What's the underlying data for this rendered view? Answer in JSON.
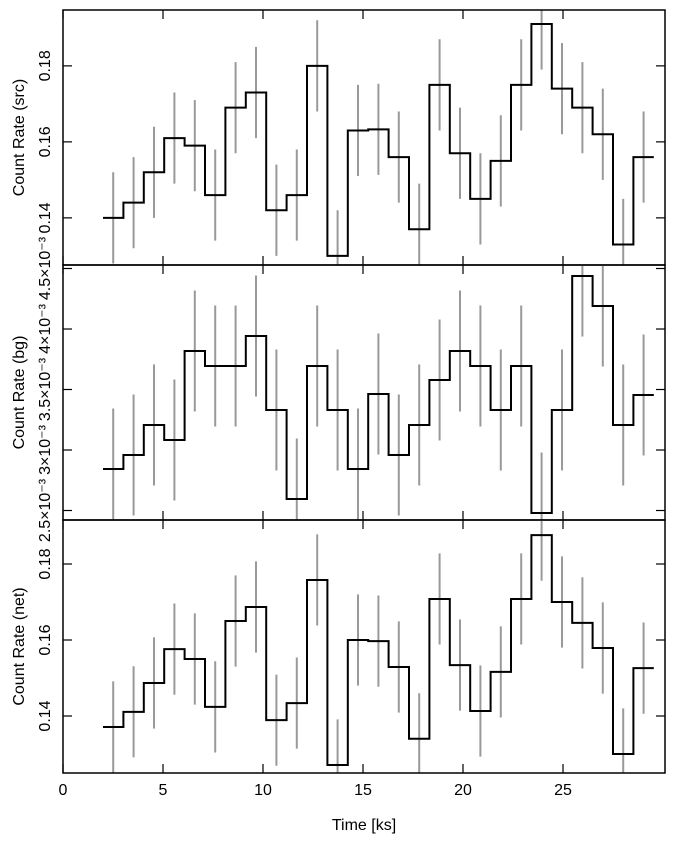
{
  "chart_data": [
    {
      "type": "step",
      "ylabel": "Count Rate (src)",
      "color": "#000000",
      "error_color": "#999999",
      "x": [
        2.51,
        3.53,
        4.55,
        5.57,
        6.59,
        7.61,
        8.63,
        9.65,
        10.67,
        11.69,
        12.71,
        13.73,
        14.75,
        15.77,
        16.79,
        17.81,
        18.83,
        19.85,
        20.87,
        21.89,
        22.91,
        23.93,
        24.95,
        25.97,
        26.99,
        28.01,
        29.03
      ],
      "values": [
        0.14,
        0.144,
        0.152,
        0.161,
        0.159,
        0.146,
        0.169,
        0.173,
        0.142,
        0.146,
        0.18,
        0.13,
        0.163,
        0.1633,
        0.156,
        0.137,
        0.175,
        0.157,
        0.145,
        0.155,
        0.175,
        0.191,
        0.174,
        0.169,
        0.162,
        0.133,
        0.156
      ],
      "errors": [
        0.012,
        0.012,
        0.012,
        0.012,
        0.012,
        0.012,
        0.012,
        0.012,
        0.012,
        0.012,
        0.012,
        0.012,
        0.012,
        0.012,
        0.012,
        0.012,
        0.012,
        0.012,
        0.012,
        0.012,
        0.012,
        0.012,
        0.012,
        0.012,
        0.012,
        0.012,
        0.012
      ],
      "xlim": [
        0,
        30.1
      ],
      "xticks": [
        0,
        5,
        10,
        15,
        20,
        25
      ],
      "ylim": [
        0.1276,
        0.1947
      ],
      "yticks": [
        0.14,
        0.16,
        0.18
      ]
    },
    {
      "type": "step",
      "ylabel": "Count Rate (bg)",
      "color": "#000000",
      "error_color": "#999999",
      "x": [
        2.51,
        3.53,
        4.55,
        5.57,
        6.59,
        7.61,
        8.63,
        9.65,
        10.67,
        11.69,
        12.71,
        13.73,
        14.75,
        15.77,
        16.79,
        17.81,
        18.83,
        19.85,
        20.87,
        21.89,
        22.91,
        23.93,
        24.95,
        25.97,
        26.99,
        28.01,
        29.03
      ],
      "values": [
        0.002843,
        0.002959,
        0.003207,
        0.003083,
        0.003818,
        0.003694,
        0.003694,
        0.003942,
        0.003331,
        0.002595,
        0.003694,
        0.003331,
        0.002843,
        0.003463,
        0.002959,
        0.003207,
        0.003579,
        0.003818,
        0.003694,
        0.003331,
        0.003694,
        0.002479,
        0.003331,
        0.004438,
        0.00419,
        0.003207,
        0.003455
      ],
      "errors": [
        0.0005,
        0.0005,
        0.0005,
        0.0005,
        0.0005,
        0.0005,
        0.0005,
        0.0005,
        0.0005,
        0.0005,
        0.0005,
        0.0005,
        0.0005,
        0.0005,
        0.0005,
        0.0005,
        0.0005,
        0.0005,
        0.0005,
        0.0005,
        0.0005,
        0.0005,
        0.0005,
        0.0005,
        0.0005,
        0.0005,
        0.0005
      ],
      "xlim": [
        0,
        30.1
      ],
      "xticks": [
        0,
        5,
        10,
        15,
        20,
        25
      ],
      "ylim": [
        0.0024215,
        0.004529
      ],
      "yticks": [
        {
          "value": 0.0025,
          "label": "2.5×10⁻³"
        },
        {
          "value": 0.003,
          "label": "3×10⁻³"
        },
        {
          "value": 0.0035,
          "label": "3.5×10⁻³"
        },
        {
          "value": 0.004,
          "label": "4×10⁻³"
        },
        {
          "value": 0.0045,
          "label": "4.5×10⁻³"
        }
      ]
    },
    {
      "type": "step",
      "ylabel": "Count Rate (net)",
      "xlabel": "Time [ks]",
      "color": "#000000",
      "error_color": "#999999",
      "x": [
        2.51,
        3.53,
        4.55,
        5.57,
        6.59,
        7.61,
        8.63,
        9.65,
        10.67,
        11.69,
        12.71,
        13.73,
        14.75,
        15.77,
        16.79,
        17.81,
        18.83,
        19.85,
        20.87,
        21.89,
        22.91,
        23.93,
        24.95,
        25.97,
        26.99,
        28.01,
        29.03
      ],
      "values": [
        0.1371,
        0.1411,
        0.1487,
        0.1576,
        0.155,
        0.1424,
        0.165,
        0.1687,
        0.1389,
        0.1434,
        0.1758,
        0.1271,
        0.16,
        0.1597,
        0.1529,
        0.134,
        0.1708,
        0.1534,
        0.1413,
        0.1516,
        0.1708,
        0.1876,
        0.17,
        0.1645,
        0.1579,
        0.13,
        0.1526
      ],
      "errors": [
        0.012,
        0.012,
        0.012,
        0.012,
        0.012,
        0.012,
        0.012,
        0.012,
        0.012,
        0.012,
        0.012,
        0.012,
        0.012,
        0.012,
        0.012,
        0.012,
        0.012,
        0.012,
        0.012,
        0.012,
        0.012,
        0.012,
        0.012,
        0.012,
        0.012,
        0.012,
        0.012
      ],
      "xlim": [
        0,
        30.1
      ],
      "xticks": [
        0,
        5,
        10,
        15,
        20,
        25
      ],
      "ylim": [
        0.125,
        0.19158
      ],
      "yticks": [
        0.14,
        0.16,
        0.18
      ]
    }
  ]
}
